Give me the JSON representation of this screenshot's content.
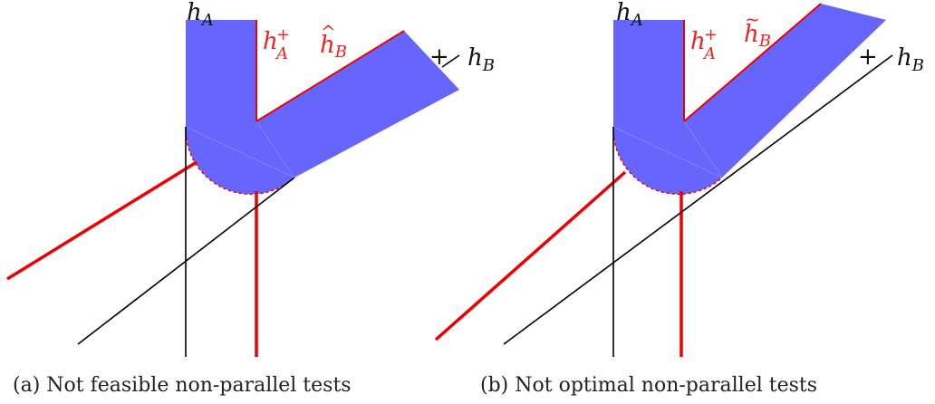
{
  "colors": {
    "region": "#6666ff",
    "red_line": "#ee0000",
    "black_line": "#000000",
    "text_red": "#ee2222",
    "text_black": "#111111"
  },
  "panel_a": {
    "label_hA": "h",
    "label_hA_sub": "A",
    "label_hA_plus": "h",
    "label_hA_plus_sup": "+",
    "label_hA_plus_sub": "A",
    "label_hB_hat": "h",
    "label_hB_hat_accent": "^",
    "label_hB_hat_sub": "B",
    "label_plus": "+",
    "label_hB": "h",
    "label_hB_sub": "B",
    "caption": "(a) Not feasible non-parallel tests"
  },
  "panel_b": {
    "label_hA": "h",
    "label_hA_sub": "A",
    "label_hA_plus": "h",
    "label_hA_plus_sup": "+",
    "label_hA_plus_sub": "A",
    "label_hB_tilde": "h",
    "label_hB_tilde_accent": "~",
    "label_hB_tilde_sub": "B",
    "label_plus": "+",
    "label_hB": "h",
    "label_hB_sub": "B",
    "caption": "(b) Not optimal non-parallel tests"
  }
}
